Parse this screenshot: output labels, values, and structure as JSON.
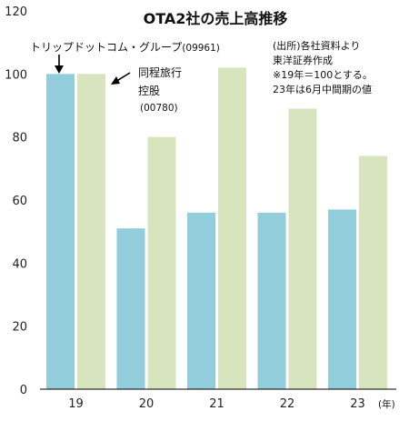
{
  "chart_data": {
    "type": "bar",
    "title": "OTA2社の売上高推移",
    "categories": [
      "19",
      "20",
      "21",
      "22",
      "23"
    ],
    "x_unit": "(年)",
    "ylim": [
      0,
      120
    ],
    "yticks": [
      0,
      20,
      40,
      60,
      80,
      100,
      120
    ],
    "grid": false,
    "series": [
      {
        "name": "トリップドットコム・グループ",
        "code": "(09961)",
        "color": "#92cddc",
        "values": [
          100,
          51,
          56,
          56,
          57
        ]
      },
      {
        "name_lines": [
          "同程旅行",
          "控股"
        ],
        "code": "(00780)",
        "color": "#d7e4bd",
        "values": [
          100,
          80,
          102,
          89,
          74
        ]
      }
    ],
    "notes": [
      "(出所)各社資料より",
      "東洋証券作成",
      "※19年＝100とする。",
      "23年は6月中間期の値"
    ],
    "colors": {
      "axis": "#000000",
      "text": "#111111"
    },
    "icons": {
      "pointer": "arrow-icon"
    }
  }
}
